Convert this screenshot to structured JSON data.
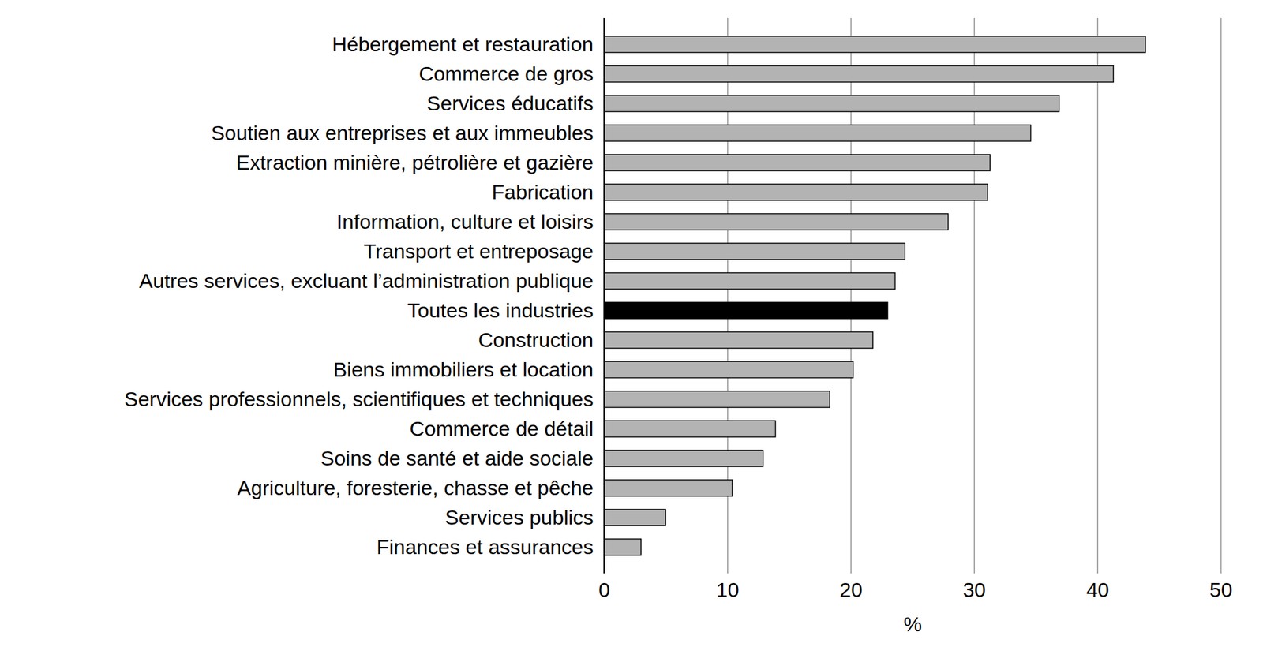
{
  "chart_data": {
    "type": "bar",
    "orientation": "horizontal",
    "categories": [
      "Hébergement et restauration",
      "Commerce de gros",
      "Services éducatifs",
      "Soutien aux entreprises et aux immeubles",
      "Extraction minière, pétrolière et gazière",
      "Fabrication",
      "Information, culture et loisirs",
      "Transport et entreposage",
      "Autres services, excluant l’administration publique",
      "Toutes les industries",
      "Construction",
      "Biens immobiliers et location",
      "Services professionnels, scientifiques et techniques",
      "Commerce de détail",
      "Soins de santé et aide sociale",
      "Agriculture, foresterie, chasse et pêche",
      "Services publics",
      "Finances et assurances"
    ],
    "values": [
      43.9,
      41.3,
      36.9,
      34.6,
      31.3,
      31.1,
      27.9,
      24.4,
      23.6,
      23.0,
      21.8,
      20.2,
      18.3,
      13.9,
      12.9,
      10.4,
      5.0,
      3.0
    ],
    "colors": [
      "#b3b3b3",
      "#b3b3b3",
      "#b3b3b3",
      "#b3b3b3",
      "#b3b3b3",
      "#b3b3b3",
      "#b3b3b3",
      "#b3b3b3",
      "#b3b3b3",
      "#000000",
      "#b3b3b3",
      "#b3b3b3",
      "#b3b3b3",
      "#b3b3b3",
      "#b3b3b3",
      "#b3b3b3",
      "#b3b3b3",
      "#b3b3b3"
    ],
    "xlabel": "%",
    "xlim": [
      0,
      50
    ],
    "xticks": [
      0,
      10,
      20,
      30,
      40,
      50
    ],
    "grid": true
  }
}
